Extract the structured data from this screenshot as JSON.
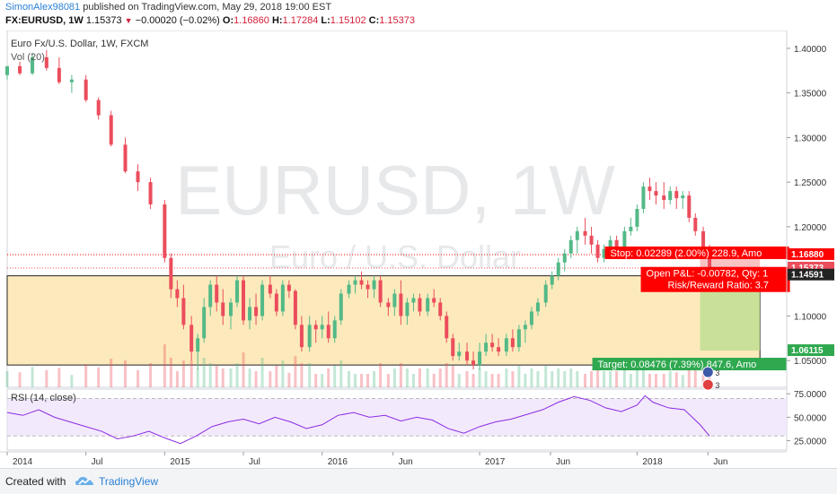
{
  "header": {
    "author": "SimonAlex98081",
    "publish_text": "published on TradingView.com, May 29, 2018 19:00 EST",
    "symbol": "FX:EURUSD, 1W",
    "last": "1.15373",
    "change": "−0.00020 (−0.02%)",
    "o_label": "O:",
    "o_value": "1.16860",
    "h_label": "H:",
    "h_value": "1.17284",
    "l_label": "L:",
    "l_value": "1.15102",
    "c_label": "C:",
    "c_value": "1.15373"
  },
  "chart_data": {
    "type": "candlestick",
    "title": "Euro Fx/U.S. Dollar, 1W, FXCM",
    "volume_label": "Vol (20)",
    "watermark_symbol": "EURUSD, 1W",
    "watermark_name": "Euro / U.S. Dollar",
    "colors": {
      "up": "#53b987",
      "down": "#eb4d5c",
      "zone_fill": "#fde6b0",
      "rsi_fill": "#f0e4fb",
      "rsi_line": "#8a2be2",
      "stop_red": "#ff0000",
      "target_green": "#2fa84f",
      "pnl_red": "#ff0000",
      "label_dark": "#222222"
    },
    "price_axis": {
      "range": [
        1.02,
        1.42
      ],
      "ticks": [
        "1.40000",
        "1.35000",
        "1.30000",
        "1.25000",
        "1.20000",
        "1.15000",
        "1.10000",
        "1.05000"
      ],
      "labels": [
        {
          "text": "1.16880",
          "value": 1.1688,
          "bg": "#ff0000",
          "fg": "#ffffff"
        },
        {
          "text": "1.15373",
          "value": 1.15373,
          "bg": "#eb4d5c",
          "fg": "#ffffff"
        },
        {
          "text": "1.14591",
          "value": 1.14591,
          "bg": "#222222",
          "fg": "#ffffff"
        },
        {
          "text": "1.06115",
          "value": 1.06115,
          "bg": "#2fa84f",
          "fg": "#ffffff"
        }
      ]
    },
    "time_axis": {
      "labels": [
        {
          "text": "2014",
          "t": 0.0
        },
        {
          "text": "Jul",
          "t": 0.5
        },
        {
          "text": "2015",
          "t": 1.0
        },
        {
          "text": "Jul",
          "t": 1.5
        },
        {
          "text": "2016",
          "t": 2.0
        },
        {
          "text": "Jun",
          "t": 2.45
        },
        {
          "text": "2017",
          "t": 3.0
        },
        {
          "text": "Jun",
          "t": 3.45
        },
        {
          "text": "2018",
          "t": 4.0
        },
        {
          "text": "Jun",
          "t": 4.45
        }
      ],
      "range_years": [
        0.0,
        4.95
      ]
    },
    "candles": [
      [
        0.0,
        1.37,
        1.38,
        1.365,
        1.38
      ],
      [
        0.08,
        1.38,
        1.385,
        1.37,
        1.372
      ],
      [
        0.16,
        1.372,
        1.395,
        1.37,
        1.39
      ],
      [
        0.25,
        1.39,
        1.398,
        1.375,
        1.378
      ],
      [
        0.33,
        1.378,
        1.39,
        1.36,
        1.362
      ],
      [
        0.41,
        1.362,
        1.37,
        1.35,
        1.365
      ],
      [
        0.5,
        1.365,
        1.37,
        1.34,
        1.342
      ],
      [
        0.58,
        1.342,
        1.345,
        1.32,
        1.325
      ],
      [
        0.66,
        1.325,
        1.33,
        1.29,
        1.292
      ],
      [
        0.75,
        1.292,
        1.3,
        1.26,
        1.262
      ],
      [
        0.83,
        1.262,
        1.27,
        1.24,
        1.25
      ],
      [
        0.91,
        1.25,
        1.255,
        1.22,
        1.225
      ],
      [
        1.0,
        1.225,
        1.23,
        1.16,
        1.165
      ],
      [
        1.04,
        1.165,
        1.17,
        1.12,
        1.13
      ],
      [
        1.08,
        1.13,
        1.14,
        1.11,
        1.12
      ],
      [
        1.12,
        1.12,
        1.135,
        1.085,
        1.09
      ],
      [
        1.17,
        1.09,
        1.1,
        1.05,
        1.06
      ],
      [
        1.21,
        1.06,
        1.08,
        1.04,
        1.075
      ],
      [
        1.25,
        1.075,
        1.12,
        1.07,
        1.11
      ],
      [
        1.29,
        1.11,
        1.14,
        1.1,
        1.135
      ],
      [
        1.33,
        1.135,
        1.145,
        1.105,
        1.115
      ],
      [
        1.37,
        1.115,
        1.13,
        1.09,
        1.1
      ],
      [
        1.42,
        1.1,
        1.12,
        1.085,
        1.115
      ],
      [
        1.46,
        1.115,
        1.145,
        1.11,
        1.14
      ],
      [
        1.5,
        1.14,
        1.145,
        1.09,
        1.095
      ],
      [
        1.54,
        1.095,
        1.12,
        1.085,
        1.11
      ],
      [
        1.58,
        1.11,
        1.125,
        1.09,
        1.1
      ],
      [
        1.62,
        1.1,
        1.14,
        1.095,
        1.135
      ],
      [
        1.67,
        1.135,
        1.145,
        1.12,
        1.125
      ],
      [
        1.71,
        1.125,
        1.13,
        1.1,
        1.105
      ],
      [
        1.75,
        1.105,
        1.14,
        1.1,
        1.135
      ],
      [
        1.79,
        1.135,
        1.14,
        1.12,
        1.128
      ],
      [
        1.83,
        1.128,
        1.13,
        1.085,
        1.09
      ],
      [
        1.87,
        1.09,
        1.1,
        1.06,
        1.065
      ],
      [
        1.92,
        1.065,
        1.1,
        1.06,
        1.09
      ],
      [
        1.96,
        1.09,
        1.095,
        1.07,
        1.085
      ],
      [
        2.0,
        1.085,
        1.1,
        1.075,
        1.09
      ],
      [
        2.04,
        1.09,
        1.105,
        1.07,
        1.075
      ],
      [
        2.08,
        1.075,
        1.1,
        1.07,
        1.095
      ],
      [
        2.12,
        1.095,
        1.13,
        1.09,
        1.125
      ],
      [
        2.17,
        1.125,
        1.14,
        1.12,
        1.135
      ],
      [
        2.21,
        1.135,
        1.145,
        1.125,
        1.14
      ],
      [
        2.25,
        1.14,
        1.15,
        1.13,
        1.135
      ],
      [
        2.29,
        1.135,
        1.14,
        1.12,
        1.13
      ],
      [
        2.33,
        1.13,
        1.145,
        1.12,
        1.14
      ],
      [
        2.37,
        1.14,
        1.145,
        1.11,
        1.115
      ],
      [
        2.42,
        1.115,
        1.12,
        1.1,
        1.11
      ],
      [
        2.46,
        1.11,
        1.13,
        1.1,
        1.125
      ],
      [
        2.5,
        1.125,
        1.14,
        1.09,
        1.1
      ],
      [
        2.54,
        1.1,
        1.12,
        1.09,
        1.115
      ],
      [
        2.58,
        1.115,
        1.125,
        1.105,
        1.12
      ],
      [
        2.62,
        1.12,
        1.125,
        1.1,
        1.105
      ],
      [
        2.67,
        1.105,
        1.125,
        1.1,
        1.12
      ],
      [
        2.71,
        1.12,
        1.13,
        1.11,
        1.115
      ],
      [
        2.75,
        1.115,
        1.12,
        1.095,
        1.1
      ],
      [
        2.79,
        1.1,
        1.105,
        1.07,
        1.075
      ],
      [
        2.83,
        1.075,
        1.08,
        1.05,
        1.055
      ],
      [
        2.87,
        1.055,
        1.07,
        1.05,
        1.06
      ],
      [
        2.92,
        1.06,
        1.07,
        1.045,
        1.05
      ],
      [
        2.96,
        1.05,
        1.06,
        1.04,
        1.045
      ],
      [
        3.0,
        1.045,
        1.07,
        1.04,
        1.06
      ],
      [
        3.04,
        1.06,
        1.08,
        1.055,
        1.07
      ],
      [
        3.08,
        1.07,
        1.08,
        1.06,
        1.065
      ],
      [
        3.12,
        1.065,
        1.075,
        1.055,
        1.06
      ],
      [
        3.17,
        1.06,
        1.08,
        1.055,
        1.075
      ],
      [
        3.21,
        1.075,
        1.085,
        1.06,
        1.065
      ],
      [
        3.25,
        1.065,
        1.09,
        1.06,
        1.085
      ],
      [
        3.29,
        1.085,
        1.095,
        1.07,
        1.09
      ],
      [
        3.33,
        1.09,
        1.11,
        1.085,
        1.105
      ],
      [
        3.37,
        1.105,
        1.12,
        1.1,
        1.115
      ],
      [
        3.42,
        1.115,
        1.14,
        1.11,
        1.135
      ],
      [
        3.46,
        1.135,
        1.15,
        1.13,
        1.145
      ],
      [
        3.5,
        1.145,
        1.165,
        1.14,
        1.16
      ],
      [
        3.54,
        1.16,
        1.175,
        1.15,
        1.17
      ],
      [
        3.58,
        1.17,
        1.19,
        1.165,
        1.185
      ],
      [
        3.62,
        1.185,
        1.2,
        1.17,
        1.195
      ],
      [
        3.67,
        1.195,
        1.21,
        1.18,
        1.19
      ],
      [
        3.71,
        1.19,
        1.2,
        1.17,
        1.18
      ],
      [
        3.75,
        1.18,
        1.185,
        1.16,
        1.165
      ],
      [
        3.79,
        1.165,
        1.18,
        1.16,
        1.175
      ],
      [
        3.83,
        1.175,
        1.19,
        1.165,
        1.185
      ],
      [
        3.87,
        1.185,
        1.19,
        1.17,
        1.175
      ],
      [
        3.92,
        1.175,
        1.2,
        1.17,
        1.195
      ],
      [
        3.96,
        1.195,
        1.21,
        1.19,
        1.2
      ],
      [
        4.0,
        1.2,
        1.225,
        1.195,
        1.22
      ],
      [
        4.04,
        1.22,
        1.25,
        1.215,
        1.245
      ],
      [
        4.08,
        1.245,
        1.255,
        1.23,
        1.24
      ],
      [
        4.12,
        1.24,
        1.25,
        1.225,
        1.235
      ],
      [
        4.17,
        1.235,
        1.25,
        1.22,
        1.23
      ],
      [
        4.21,
        1.23,
        1.245,
        1.225,
        1.24
      ],
      [
        4.25,
        1.24,
        1.245,
        1.22,
        1.232
      ],
      [
        4.29,
        1.232,
        1.24,
        1.22,
        1.235
      ],
      [
        4.33,
        1.235,
        1.24,
        1.205,
        1.21
      ],
      [
        4.37,
        1.21,
        1.215,
        1.19,
        1.195
      ],
      [
        4.42,
        1.195,
        1.2,
        1.17,
        1.175
      ],
      [
        4.46,
        1.175,
        1.18,
        1.15,
        1.154
      ]
    ],
    "position": {
      "stop_label": "Stop: 0.02289 (2.00%) 228.9, Amo",
      "stop_value": 1.1688,
      "entry_value": 1.14591,
      "target_value": 1.06115,
      "pnl_label": "Open P&L: -0.00782, Qty: 1",
      "rr_label": "Risk/Reward Ratio: 3.7",
      "target_label": "Target: 0.08476 (7.39%) 847.6, Amo",
      "start_t": 4.4,
      "end_t": 4.78
    },
    "zone": {
      "top": 1.145,
      "bottom": 1.045,
      "start_t": 0.0,
      "end_t": 4.78
    },
    "events": [
      "3",
      "3"
    ],
    "rsi": {
      "label": "RSI (14, close)",
      "ticks": [
        "75.0000",
        "50.0000",
        "25.0000"
      ],
      "upper": 70,
      "lower": 30,
      "range": [
        15,
        80
      ],
      "values": [
        [
          0.0,
          55
        ],
        [
          0.1,
          52
        ],
        [
          0.2,
          58
        ],
        [
          0.3,
          50
        ],
        [
          0.4,
          45
        ],
        [
          0.5,
          40
        ],
        [
          0.6,
          35
        ],
        [
          0.7,
          27
        ],
        [
          0.8,
          30
        ],
        [
          0.9,
          35
        ],
        [
          1.0,
          28
        ],
        [
          1.1,
          22
        ],
        [
          1.2,
          30
        ],
        [
          1.3,
          40
        ],
        [
          1.4,
          45
        ],
        [
          1.5,
          48
        ],
        [
          1.6,
          43
        ],
        [
          1.7,
          50
        ],
        [
          1.8,
          45
        ],
        [
          1.9,
          38
        ],
        [
          2.0,
          42
        ],
        [
          2.1,
          52
        ],
        [
          2.2,
          55
        ],
        [
          2.3,
          50
        ],
        [
          2.4,
          52
        ],
        [
          2.5,
          46
        ],
        [
          2.6,
          50
        ],
        [
          2.7,
          47
        ],
        [
          2.8,
          38
        ],
        [
          2.9,
          33
        ],
        [
          3.0,
          40
        ],
        [
          3.1,
          45
        ],
        [
          3.2,
          48
        ],
        [
          3.3,
          53
        ],
        [
          3.4,
          58
        ],
        [
          3.5,
          66
        ],
        [
          3.6,
          72
        ],
        [
          3.7,
          68
        ],
        [
          3.8,
          60
        ],
        [
          3.9,
          56
        ],
        [
          4.0,
          63
        ],
        [
          4.05,
          73
        ],
        [
          4.1,
          66
        ],
        [
          4.2,
          60
        ],
        [
          4.3,
          58
        ],
        [
          4.4,
          42
        ],
        [
          4.46,
          30
        ]
      ]
    }
  },
  "footer": {
    "created_with": "Created with",
    "brand": "TradingView"
  }
}
